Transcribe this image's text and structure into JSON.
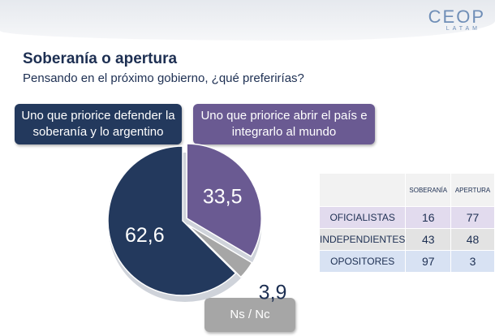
{
  "header": {
    "logo": "CEOP",
    "logo_sub": "LATAM"
  },
  "chart_data": {
    "type": "pie",
    "title": "Soberanía o apertura",
    "subtitle": "Pensando en el próximo gobierno, ¿qué preferirías?",
    "categories": [
      "Uno que priorice defender la soberanía y lo argentino",
      "Uno que priorice abrir el país e integrarlo al mundo",
      "Ns / Nc"
    ],
    "values": [
      62.6,
      33.5,
      3.9
    ],
    "value_labels": [
      "62,6",
      "33,5",
      "3,9"
    ],
    "colors": [
      "#23395d",
      "#6a5a92",
      "#a6a6a6"
    ]
  },
  "table": {
    "columns": [
      "SOBERANÍA",
      "APERTURA"
    ],
    "rows": [
      {
        "label": "OFICIALISTAS",
        "values": [
          16,
          77
        ]
      },
      {
        "label": "INDEPENDIENTES",
        "values": [
          43,
          48
        ]
      },
      {
        "label": "OPOSITORES",
        "values": [
          97,
          3
        ]
      }
    ]
  }
}
